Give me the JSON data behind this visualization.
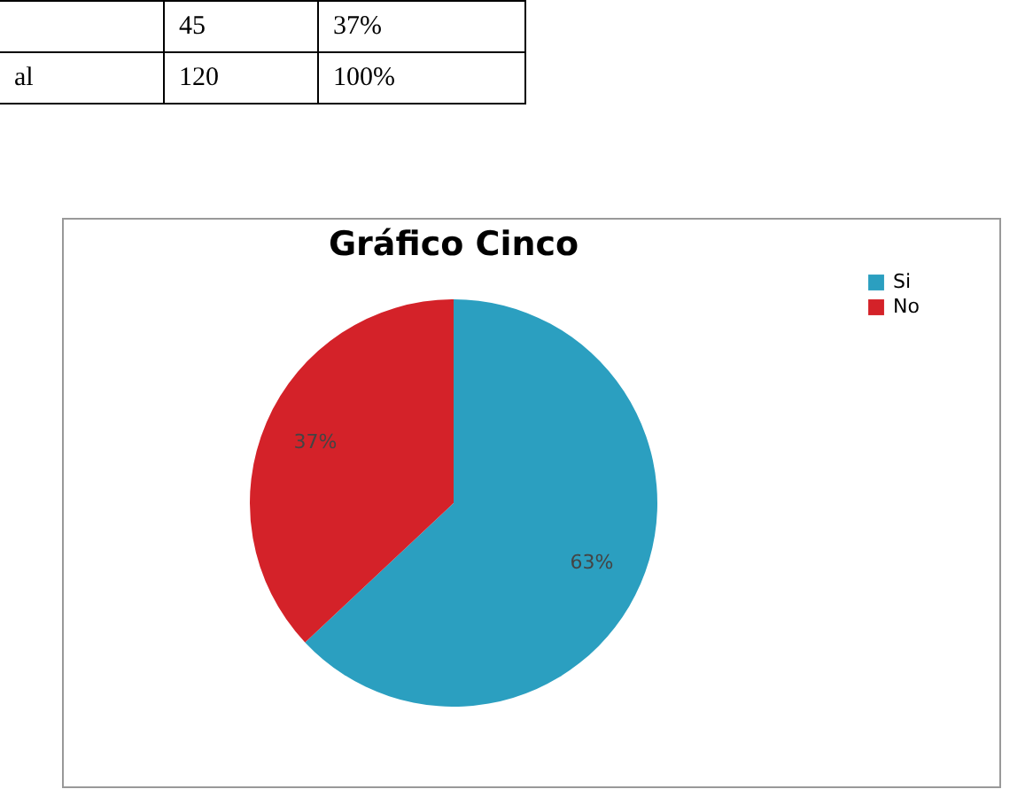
{
  "chart_data": {
    "type": "pie",
    "title": "Gráfico Cinco",
    "categories": [
      "Si",
      "No"
    ],
    "values": [
      63,
      37
    ],
    "colors": [
      "#2b9fc0",
      "#d42229"
    ],
    "value_labels": [
      "63%",
      "37%"
    ],
    "legend": "right",
    "annotations": [
      "45",
      "37%",
      "al",
      "120",
      "100%"
    ]
  }
}
